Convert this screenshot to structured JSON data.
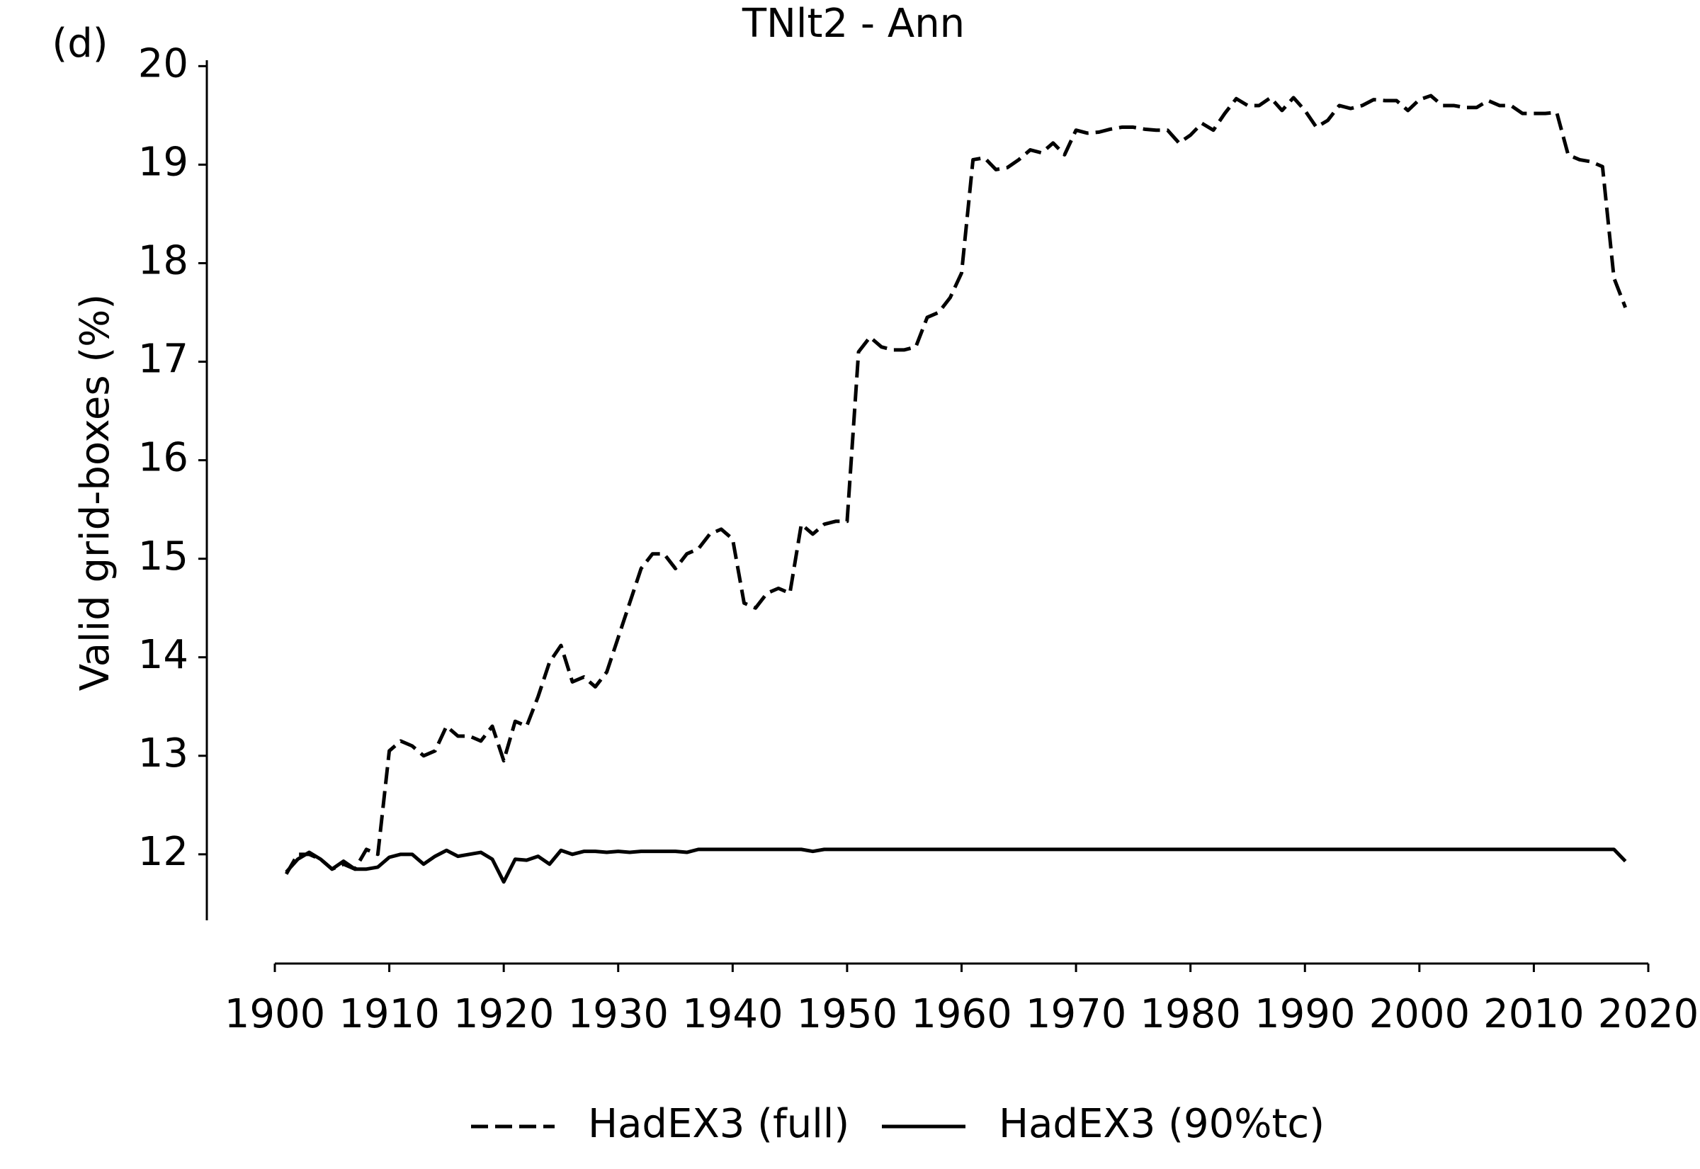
{
  "chart_data": {
    "type": "line",
    "title": "TNlt2 - Ann",
    "panel_label": "(d)",
    "ylabel": "Valid grid-boxes (%)",
    "x": [
      1901,
      1902,
      1903,
      1904,
      1905,
      1906,
      1907,
      1908,
      1909,
      1910,
      1911,
      1912,
      1913,
      1914,
      1915,
      1916,
      1917,
      1918,
      1919,
      1920,
      1921,
      1922,
      1923,
      1924,
      1925,
      1926,
      1927,
      1928,
      1929,
      1930,
      1931,
      1932,
      1933,
      1934,
      1935,
      1936,
      1937,
      1938,
      1939,
      1940,
      1941,
      1942,
      1943,
      1944,
      1945,
      1946,
      1947,
      1948,
      1949,
      1950,
      1951,
      1952,
      1953,
      1954,
      1955,
      1956,
      1957,
      1958,
      1959,
      1960,
      1961,
      1962,
      1963,
      1964,
      1965,
      1966,
      1967,
      1968,
      1969,
      1970,
      1971,
      1972,
      1973,
      1974,
      1975,
      1976,
      1977,
      1978,
      1979,
      1980,
      1981,
      1982,
      1983,
      1984,
      1985,
      1986,
      1987,
      1988,
      1989,
      1990,
      1991,
      1992,
      1993,
      1994,
      1995,
      1996,
      1997,
      1998,
      1999,
      2000,
      2001,
      2002,
      2003,
      2004,
      2005,
      2006,
      2007,
      2008,
      2009,
      2010,
      2011,
      2012,
      2013,
      2014,
      2015,
      2016,
      2017,
      2018
    ],
    "series": [
      {
        "name": "HadEX3 (full)",
        "color": "#000000",
        "style": "dashed",
        "values": [
          11.8,
          12.0,
          12.0,
          11.95,
          11.85,
          11.9,
          11.85,
          12.05,
          12.0,
          13.05,
          13.15,
          13.1,
          13.0,
          13.05,
          13.3,
          13.2,
          13.2,
          13.15,
          13.3,
          12.95,
          13.35,
          13.3,
          13.6,
          13.95,
          14.12,
          13.75,
          13.8,
          13.7,
          13.85,
          14.2,
          14.55,
          14.9,
          15.05,
          15.05,
          14.9,
          15.05,
          15.1,
          15.25,
          15.3,
          15.2,
          14.55,
          14.5,
          14.65,
          14.7,
          14.65,
          15.35,
          15.25,
          15.35,
          15.38,
          15.38,
          17.1,
          17.25,
          17.15,
          17.12,
          17.12,
          17.15,
          17.45,
          17.5,
          17.65,
          17.9,
          19.05,
          19.07,
          18.95,
          18.97,
          19.05,
          19.15,
          19.12,
          19.22,
          19.1,
          19.35,
          19.32,
          19.33,
          19.36,
          19.38,
          19.38,
          19.36,
          19.35,
          19.35,
          19.22,
          19.3,
          19.42,
          19.35,
          19.52,
          19.67,
          19.6,
          19.6,
          19.68,
          19.55,
          19.68,
          19.55,
          19.38,
          19.45,
          19.6,
          19.57,
          19.6,
          19.66,
          19.65,
          19.65,
          19.55,
          19.66,
          19.7,
          19.6,
          19.6,
          19.58,
          19.58,
          19.65,
          19.6,
          19.6,
          19.52,
          19.52,
          19.52,
          19.53,
          19.1,
          19.05,
          19.03,
          18.98,
          17.85,
          17.55
        ]
      },
      {
        "name": "HadEX3 (90%tc)",
        "color": "#000000",
        "style": "solid",
        "values": [
          11.82,
          11.95,
          12.02,
          11.95,
          11.85,
          11.93,
          11.85,
          11.85,
          11.87,
          11.97,
          12.0,
          12.0,
          11.9,
          11.98,
          12.04,
          11.98,
          12.0,
          12.02,
          11.95,
          11.72,
          11.95,
          11.94,
          11.98,
          11.9,
          12.04,
          12.0,
          12.03,
          12.03,
          12.02,
          12.03,
          12.02,
          12.03,
          12.03,
          12.03,
          12.03,
          12.02,
          12.05,
          12.05,
          12.05,
          12.05,
          12.05,
          12.05,
          12.05,
          12.05,
          12.05,
          12.05,
          12.03,
          12.05,
          12.05,
          12.05,
          12.05,
          12.05,
          12.05,
          12.05,
          12.05,
          12.05,
          12.05,
          12.05,
          12.05,
          12.05,
          12.05,
          12.05,
          12.05,
          12.05,
          12.05,
          12.05,
          12.05,
          12.05,
          12.05,
          12.05,
          12.05,
          12.05,
          12.05,
          12.05,
          12.05,
          12.05,
          12.05,
          12.05,
          12.05,
          12.05,
          12.05,
          12.05,
          12.05,
          12.05,
          12.05,
          12.05,
          12.05,
          12.05,
          12.05,
          12.05,
          12.05,
          12.05,
          12.05,
          12.05,
          12.05,
          12.05,
          12.05,
          12.05,
          12.05,
          12.05,
          12.05,
          12.05,
          12.05,
          12.05,
          12.05,
          12.05,
          12.05,
          12.05,
          12.05,
          12.05,
          12.05,
          12.05,
          12.05,
          12.05,
          12.05,
          12.05,
          12.05,
          11.93
        ]
      }
    ],
    "xlim": [
      1900,
      2020
    ],
    "xticks": [
      1900,
      1910,
      1920,
      1930,
      1940,
      1950,
      1960,
      1970,
      1980,
      1990,
      2000,
      2010,
      2020
    ],
    "ylim": [
      11.33,
      20.06
    ],
    "yticks": [
      12,
      13,
      14,
      15,
      16,
      17,
      18,
      19,
      20
    ],
    "grid": false,
    "legend": "bottom"
  }
}
